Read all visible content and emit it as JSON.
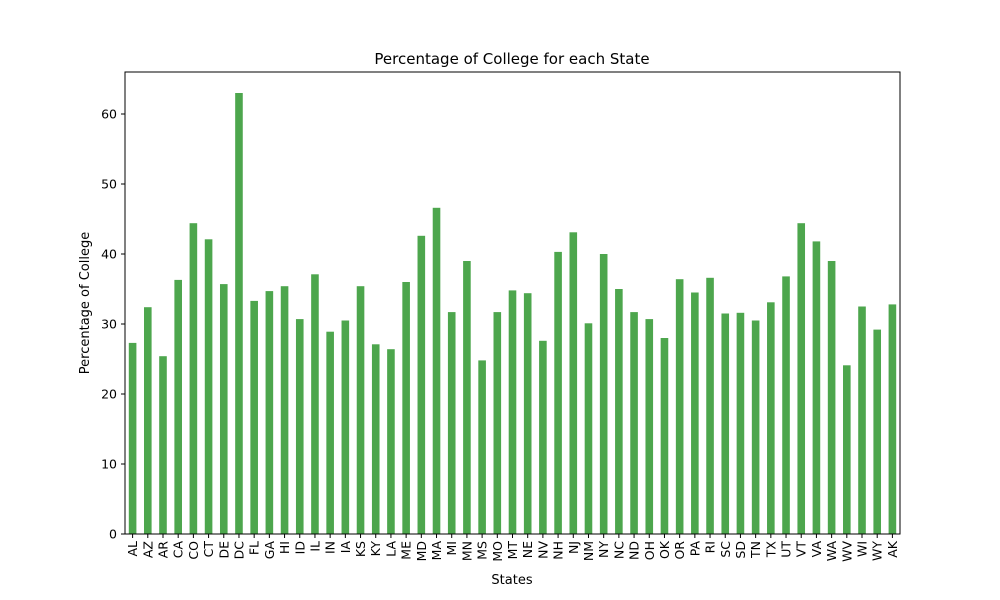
{
  "chart_data": {
    "type": "bar",
    "title": "Percentage of College for each State",
    "xlabel": "States",
    "ylabel": "Percentage of College",
    "ylim": [
      0,
      66
    ],
    "yticks": [
      0,
      10,
      20,
      30,
      40,
      50,
      60
    ],
    "bar_color": "#4da64d",
    "legend": "none",
    "grid": false,
    "categories": [
      "AL",
      "AZ",
      "AR",
      "CA",
      "CO",
      "CT",
      "DE",
      "DC",
      "FL",
      "GA",
      "HI",
      "ID",
      "IL",
      "IN",
      "IA",
      "KS",
      "KY",
      "LA",
      "ME",
      "MD",
      "MA",
      "MI",
      "MN",
      "MS",
      "MO",
      "MT",
      "NE",
      "NV",
      "NH",
      "NJ",
      "NM",
      "NY",
      "NC",
      "ND",
      "OH",
      "OK",
      "OR",
      "PA",
      "RI",
      "SC",
      "SD",
      "TN",
      "TX",
      "UT",
      "VT",
      "VA",
      "WA",
      "WV",
      "WI",
      "WY",
      "AK"
    ],
    "values": [
      27.3,
      32.4,
      25.4,
      36.3,
      44.4,
      42.1,
      35.7,
      63.0,
      33.3,
      34.7,
      35.4,
      30.7,
      37.1,
      28.9,
      30.5,
      35.4,
      27.1,
      26.4,
      36.0,
      42.6,
      46.6,
      31.7,
      39.0,
      24.8,
      31.7,
      34.8,
      34.4,
      27.6,
      40.3,
      43.1,
      30.1,
      40.0,
      35.0,
      31.7,
      30.7,
      28.0,
      36.4,
      34.5,
      36.6,
      31.5,
      31.6,
      30.5,
      33.1,
      36.8,
      44.4,
      41.8,
      39.0,
      24.1,
      32.5,
      29.2,
      32.8
    ]
  }
}
